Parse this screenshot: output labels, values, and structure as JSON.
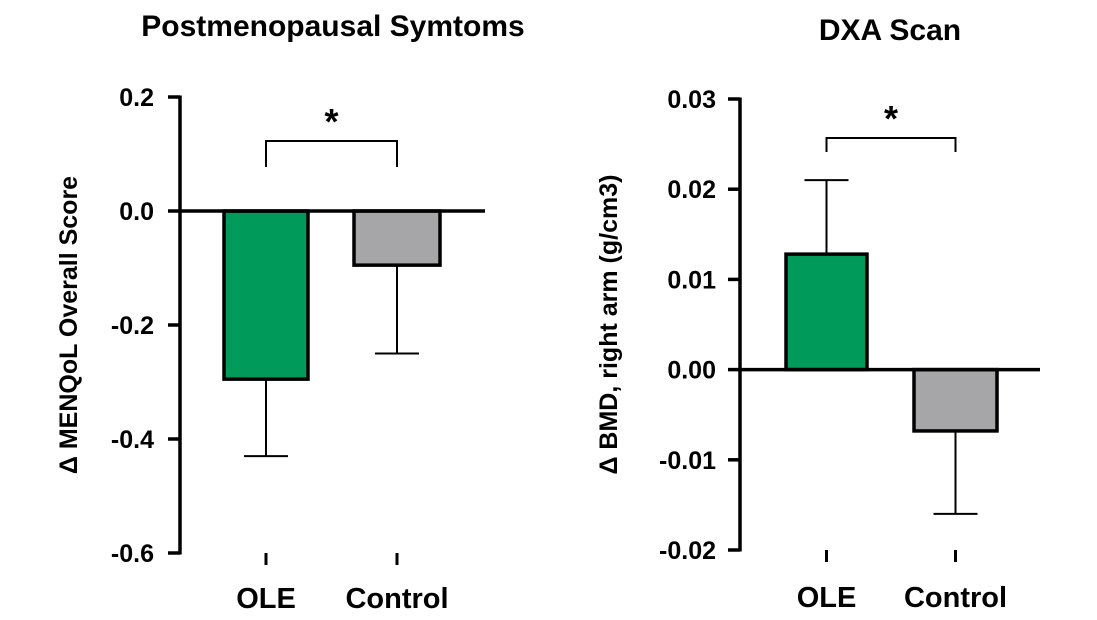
{
  "chart_data": [
    {
      "type": "bar",
      "title": "Postmenopausal Symtoms",
      "xlabel": "",
      "ylabel": "Δ MENQoL Overall Score",
      "categories": [
        "OLE",
        "Control"
      ],
      "values": [
        -0.295,
        -0.095
      ],
      "error_bars": [
        {
          "low": -0.43,
          "high": -0.295
        },
        {
          "low": -0.25,
          "high": -0.095
        }
      ],
      "ylim": [
        -0.6,
        0.2
      ],
      "yticks": [
        "0.2",
        "0.0",
        "-0.2",
        "-0.4",
        "-0.6"
      ],
      "ytick_values": [
        0.2,
        0.0,
        -0.2,
        -0.4,
        -0.6
      ],
      "colors": [
        "#009a5a",
        "#a6a6a8"
      ],
      "significance": {
        "label": "*",
        "between": [
          "OLE",
          "Control"
        ]
      }
    },
    {
      "type": "bar",
      "title": "DXA Scan",
      "xlabel": "",
      "ylabel": "Δ BMD, right arm (g/cm3)",
      "categories": [
        "OLE",
        "Control"
      ],
      "values": [
        0.0128,
        -0.0068
      ],
      "error_bars": [
        {
          "low": 0.0128,
          "high": 0.021
        },
        {
          "low": -0.016,
          "high": -0.0068
        }
      ],
      "ylim": [
        -0.02,
        0.03
      ],
      "yticks": [
        "0.03",
        "0.02",
        "0.01",
        "0.00",
        "-0.01",
        "-0.02"
      ],
      "ytick_values": [
        0.03,
        0.02,
        0.01,
        0.0,
        -0.01,
        -0.02
      ],
      "colors": [
        "#009a5a",
        "#a6a6a8"
      ],
      "significance": {
        "label": "*",
        "between": [
          "OLE",
          "Control"
        ]
      }
    }
  ]
}
